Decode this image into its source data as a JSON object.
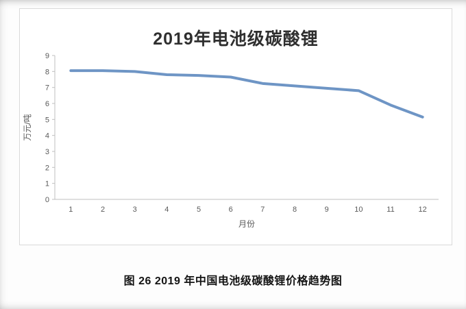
{
  "figure": {
    "caption": "图 26 2019 年中国电池级碳酸锂价格趋势图"
  },
  "chart_data": {
    "type": "line",
    "title": "2019年电池级碳酸锂",
    "xlabel": "月份",
    "ylabel": "万元/吨",
    "categories": [
      "1",
      "2",
      "3",
      "4",
      "5",
      "6",
      "7",
      "8",
      "9",
      "10",
      "11",
      "12"
    ],
    "values": [
      8.05,
      8.05,
      8.0,
      7.8,
      7.75,
      7.65,
      7.25,
      7.1,
      6.95,
      6.8,
      5.9,
      5.15
    ],
    "ylim": [
      0,
      9
    ],
    "ytick_step": 1,
    "grid": false,
    "legend": "none",
    "line_color": "#6e95c5",
    "axis_color": "#bfbfbf",
    "tick_label_color": "#595959"
  }
}
